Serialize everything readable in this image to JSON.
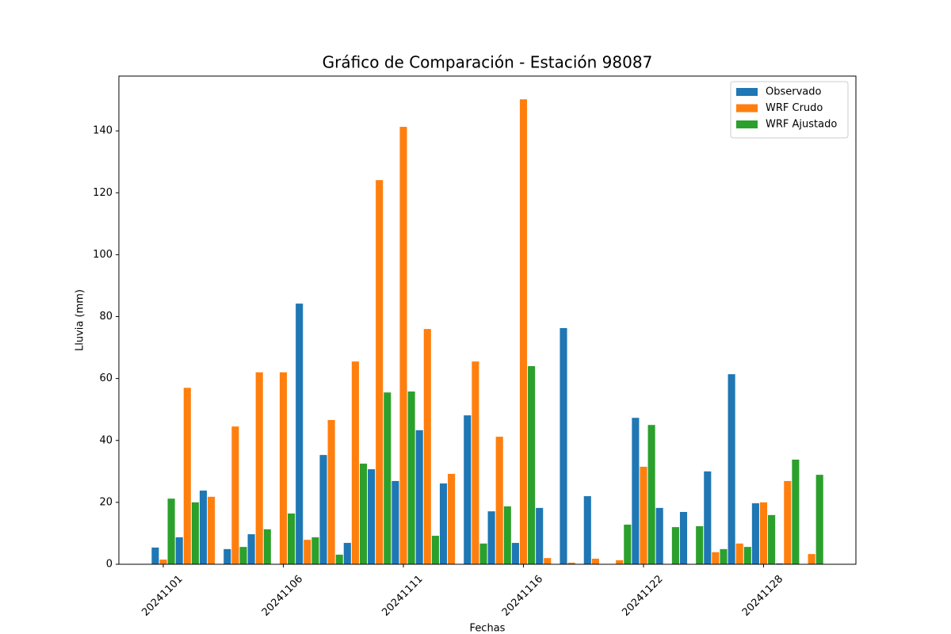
{
  "chart_data": {
    "type": "bar",
    "title": "Gráfico de Comparación - Estación 98087",
    "x_label": "Fechas",
    "y_label": "Lluvia (mm)",
    "categories": [
      "20241101",
      null,
      null,
      null,
      null,
      "20241106",
      null,
      null,
      null,
      null,
      "20241111",
      null,
      null,
      null,
      null,
      "20241116",
      null,
      null,
      null,
      null,
      "20241122",
      null,
      null,
      null,
      null,
      "20241128",
      null,
      null
    ],
    "series": [
      {
        "name": "Observado",
        "color": "#1f77b4",
        "values": [
          5.4,
          8.7,
          23.8,
          4.9,
          9.7,
          0,
          84.2,
          35.3,
          6.9,
          30.7,
          26.9,
          43.3,
          26.1,
          48.1,
          17.1,
          6.9,
          18.2,
          76.3,
          22,
          0,
          47.3,
          18.2,
          16.9,
          30,
          61.4,
          19.7,
          0.3,
          0
        ]
      },
      {
        "name": "WRF Crudo",
        "color": "#ff7f0e",
        "values": [
          1.5,
          57,
          21.8,
          44.5,
          62,
          62,
          7.9,
          46.6,
          65.5,
          124.1,
          141.3,
          76,
          29.2,
          65.5,
          41.2,
          150.2,
          2,
          0.5,
          1.8,
          1.3,
          31.5,
          0,
          0,
          3.9,
          6.7,
          20,
          26.9,
          3.3
        ]
      },
      {
        "name": "WRF Ajustado",
        "color": "#2ca02c",
        "values": [
          21.2,
          20,
          0,
          5.6,
          11.3,
          16.4,
          8.7,
          3.1,
          32.5,
          55.5,
          55.8,
          9.2,
          0,
          6.7,
          18.7,
          64,
          0,
          0,
          0,
          12.8,
          45,
          12,
          12.3,
          4.9,
          5.6,
          15.9,
          33.8,
          28.9
        ]
      }
    ],
    "ylim": [
      0,
      157.7
    ],
    "yticks": [
      0,
      20,
      40,
      60,
      80,
      100,
      120,
      140
    ],
    "legend": "upper right"
  }
}
